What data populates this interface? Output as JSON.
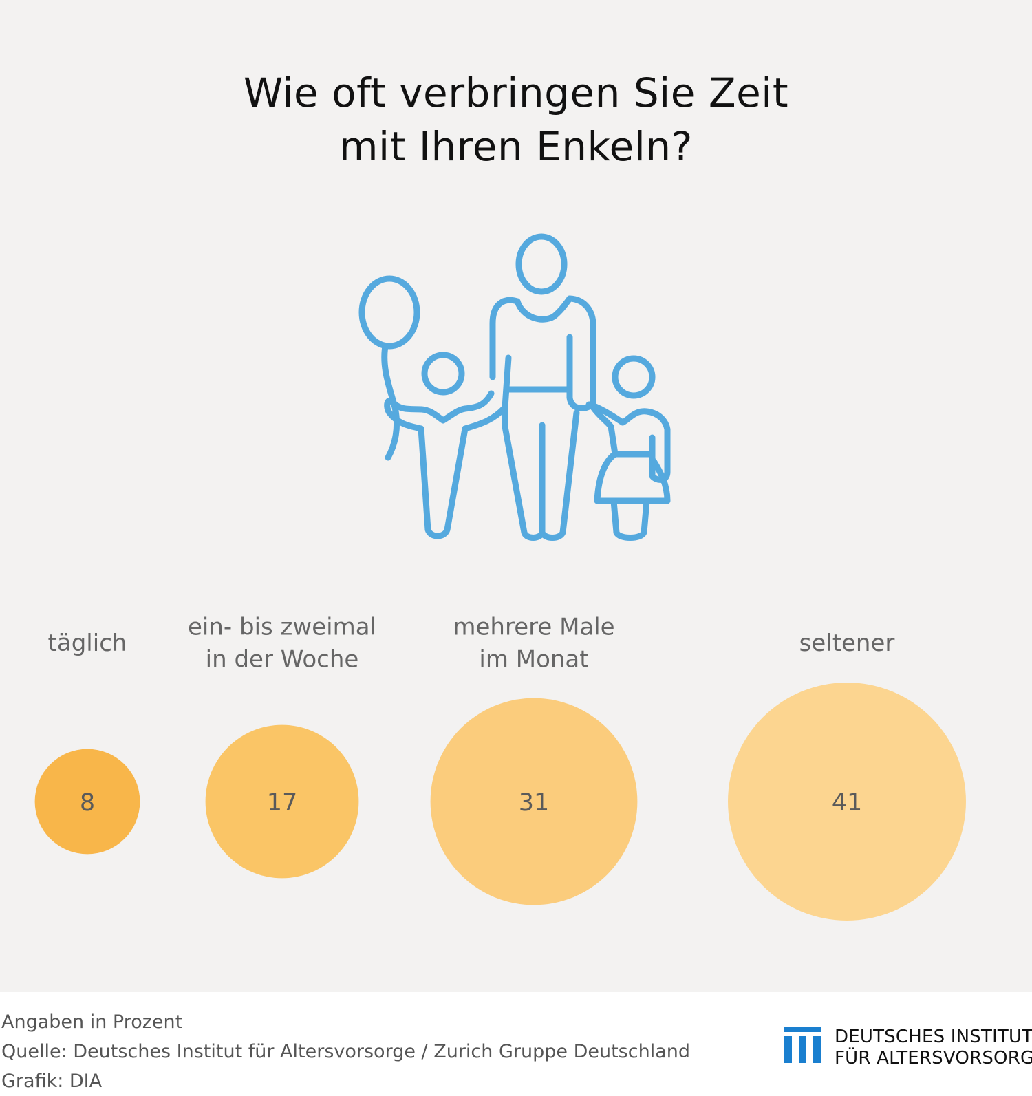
{
  "title": {
    "line1": "Wie oft verbringen Sie Zeit",
    "line2": "mit Ihren Enkeln?"
  },
  "illustration": {
    "icon": "family-with-balloon-icon",
    "color": "#55a9de"
  },
  "chart_data": {
    "type": "bubble",
    "unit": "Prozent",
    "categories": [
      [
        "täglich"
      ],
      [
        "ein- bis zweimal",
        "in der Woche"
      ],
      [
        "mehrere Male",
        "im Monat"
      ],
      [
        "seltener"
      ]
    ],
    "values": [
      8,
      17,
      31,
      41
    ],
    "colors": [
      "#f8b64a",
      "#fac566",
      "#fbcc7c",
      "#fcd590"
    ],
    "value_label_color": "#5a5a5a",
    "category_label_color": "#666666"
  },
  "footer": {
    "note": "Angaben in Prozent",
    "source": "Quelle: Deutsches Institut für Altersvorsorge / Zurich Gruppe Deutschland",
    "credit": "Grafik: DIA"
  },
  "logo": {
    "line1": "DEUTSCHES INSTITUT",
    "line2": "FÜR ALTERSVORSORGE",
    "color": "#1a7fcf"
  }
}
